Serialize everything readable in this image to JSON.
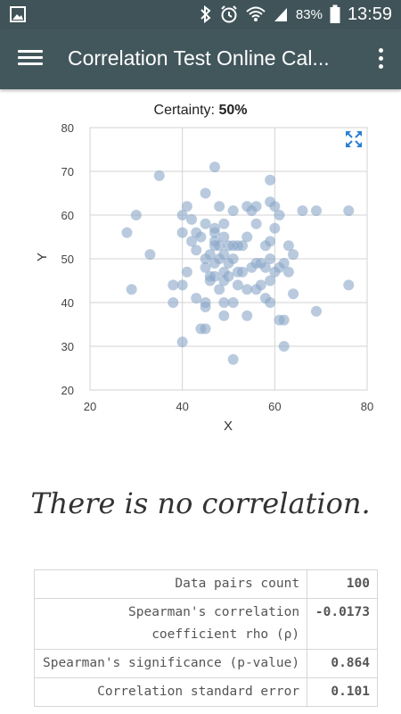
{
  "status_bar": {
    "battery": "83%",
    "time": "13:59",
    "icons": [
      "image-icon",
      "bluetooth-icon",
      "alarm-icon",
      "wifi-icon",
      "signal-icon",
      "battery-icon"
    ]
  },
  "app_bar": {
    "title": "Correlation Test Online Cal...",
    "menu_icon": "hamburger-menu-icon",
    "more_icon": "more-vert-icon"
  },
  "certainty": {
    "label": "Certainty:",
    "value": "50%"
  },
  "chart_data": {
    "type": "scatter",
    "xlabel": "X",
    "ylabel": "Y",
    "xlim": [
      20,
      80
    ],
    "ylim": [
      20,
      80
    ],
    "x_ticks": [
      "20",
      "40",
      "60",
      "80"
    ],
    "y_ticks": [
      "20",
      "30",
      "40",
      "50",
      "60",
      "70",
      "80"
    ],
    "grid": true,
    "point_color": "#8aa6c8",
    "expand_icon": "expand-icon",
    "points": [
      [
        28,
        56
      ],
      [
        29,
        43
      ],
      [
        30,
        60
      ],
      [
        33,
        51
      ],
      [
        35,
        69
      ],
      [
        38,
        44
      ],
      [
        38,
        40
      ],
      [
        40,
        60
      ],
      [
        40,
        56
      ],
      [
        41,
        62
      ],
      [
        40,
        44
      ],
      [
        41,
        47
      ],
      [
        40,
        31
      ],
      [
        42,
        59
      ],
      [
        42,
        54
      ],
      [
        43,
        56
      ],
      [
        43,
        41
      ],
      [
        44,
        55
      ],
      [
        44,
        34
      ],
      [
        45,
        65
      ],
      [
        45,
        58
      ],
      [
        45,
        50
      ],
      [
        45,
        48
      ],
      [
        45,
        40
      ],
      [
        45,
        39
      ],
      [
        45,
        34
      ],
      [
        46,
        51
      ],
      [
        46,
        45
      ],
      [
        47,
        71
      ],
      [
        47,
        57
      ],
      [
        47,
        56
      ],
      [
        47,
        54
      ],
      [
        47,
        53
      ],
      [
        47,
        49
      ],
      [
        47,
        46
      ],
      [
        48,
        62
      ],
      [
        48,
        53
      ],
      [
        48,
        50
      ],
      [
        48,
        43
      ],
      [
        49,
        58
      ],
      [
        49,
        55
      ],
      [
        49,
        51
      ],
      [
        49,
        47
      ],
      [
        49,
        45
      ],
      [
        49,
        40
      ],
      [
        49,
        37
      ],
      [
        50,
        53
      ],
      [
        50,
        46
      ],
      [
        51,
        61
      ],
      [
        51,
        53
      ],
      [
        51,
        50
      ],
      [
        51,
        40
      ],
      [
        51,
        27
      ],
      [
        52,
        44
      ],
      [
        52,
        53
      ],
      [
        53,
        47
      ],
      [
        53,
        53
      ],
      [
        54,
        62
      ],
      [
        54,
        55
      ],
      [
        54,
        43
      ],
      [
        54,
        37
      ],
      [
        55,
        61
      ],
      [
        55,
        48
      ],
      [
        56,
        62
      ],
      [
        56,
        58
      ],
      [
        56,
        49
      ],
      [
        56,
        43
      ],
      [
        57,
        49
      ],
      [
        58,
        53
      ],
      [
        58,
        41
      ],
      [
        59,
        68
      ],
      [
        59,
        63
      ],
      [
        59,
        54
      ],
      [
        59,
        50
      ],
      [
        59,
        45
      ],
      [
        59,
        40
      ],
      [
        60,
        62
      ],
      [
        60,
        57
      ],
      [
        60,
        47
      ],
      [
        61,
        60
      ],
      [
        61,
        48
      ],
      [
        61,
        36
      ],
      [
        62,
        49
      ],
      [
        62,
        36
      ],
      [
        62,
        30
      ],
      [
        63,
        53
      ],
      [
        63,
        47
      ],
      [
        64,
        51
      ],
      [
        64,
        42
      ],
      [
        66,
        61
      ],
      [
        69,
        61
      ],
      [
        69,
        38
      ],
      [
        76,
        61
      ],
      [
        76,
        44
      ],
      [
        57,
        44
      ],
      [
        52,
        47
      ],
      [
        46,
        46
      ],
      [
        50,
        49
      ],
      [
        58,
        48
      ],
      [
        43,
        52
      ]
    ]
  },
  "verdict": "There is no correlation.",
  "stats_table": [
    {
      "label": "Data pairs count",
      "value": "100"
    },
    {
      "label": "Spearman's correlation coefficient rho (ρ)",
      "value": "-0.0173"
    },
    {
      "label": "Spearman's significance (p-value)",
      "value": "0.864"
    },
    {
      "label": "Correlation standard error",
      "value": "0.101"
    }
  ]
}
